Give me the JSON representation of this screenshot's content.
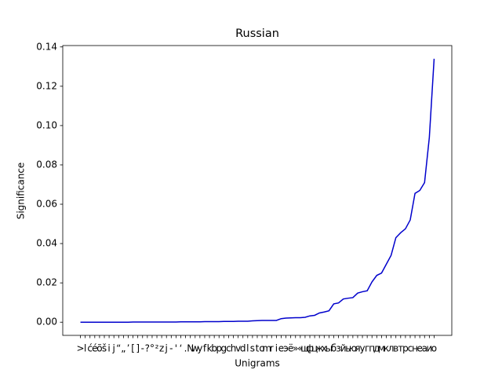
{
  "chart_data": {
    "type": "line",
    "title": "Russian",
    "x_label": "Unigrams",
    "y_label": "Significance",
    "categories": [
      ">",
      "l",
      "ć",
      "é",
      "õ",
      "š",
      "i",
      "j",
      "“",
      "„",
      "’",
      "[",
      "]",
      "-",
      "?",
      "°",
      "²",
      "z",
      "j",
      "-",
      "'",
      "‘",
      ".",
      "N",
      "w",
      "y",
      "f",
      "k",
      "b",
      "p",
      "g",
      "c",
      "h",
      "v",
      "d",
      "l",
      "s",
      "t",
      "o",
      "m",
      "r",
      "i",
      "e",
      "э",
      "ё",
      "»",
      "«",
      "щ",
      "ф",
      "ц",
      "ж",
      "х",
      "ы",
      "б",
      "з",
      "й",
      "ь",
      "ю",
      "я",
      "у",
      "г",
      "п",
      "д",
      "м",
      "к",
      "л",
      "в",
      "т",
      "р",
      "с",
      "н",
      "е",
      "а",
      "и",
      "о"
    ],
    "series": [
      {
        "name": "Russian",
        "color": "#0000cc",
        "values": [
          0,
          0,
          0,
          0,
          0,
          0,
          0,
          0,
          0,
          0,
          0,
          0.0001,
          0.0001,
          0.0001,
          0.0001,
          0.0001,
          0.0001,
          0.0001,
          0.0001,
          0.0001,
          0.0001,
          0.0002,
          0.0002,
          0.0002,
          0.0002,
          0.0002,
          0.0003,
          0.0003,
          0.0003,
          0.0003,
          0.0004,
          0.0004,
          0.0004,
          0.0005,
          0.0005,
          0.0005,
          0.0007,
          0.0008,
          0.0009,
          0.0009,
          0.0009,
          0.0009,
          0.0018,
          0.0021,
          0.0022,
          0.0023,
          0.0023,
          0.0025,
          0.0032,
          0.0035,
          0.0047,
          0.0052,
          0.0058,
          0.0093,
          0.0098,
          0.0118,
          0.0122,
          0.0125,
          0.0148,
          0.0155,
          0.016,
          0.0205,
          0.0238,
          0.025,
          0.0295,
          0.034,
          0.043,
          0.0455,
          0.0475,
          0.052,
          0.0655,
          0.067,
          0.071,
          0.094,
          0.134
        ]
      }
    ],
    "ylim": [
      -0.0067,
      0.1407
    ],
    "yticks": [
      {
        "value": 0,
        "label": "0.00"
      },
      {
        "value": 0.02,
        "label": "0.02"
      },
      {
        "value": 0.04,
        "label": "0.04"
      },
      {
        "value": 0.06,
        "label": "0.06"
      },
      {
        "value": 0.08,
        "label": "0.08"
      },
      {
        "value": 0.1,
        "label": "0.10"
      },
      {
        "value": 0.12,
        "label": "0.12"
      },
      {
        "value": 0.14,
        "label": "0.14"
      }
    ]
  }
}
